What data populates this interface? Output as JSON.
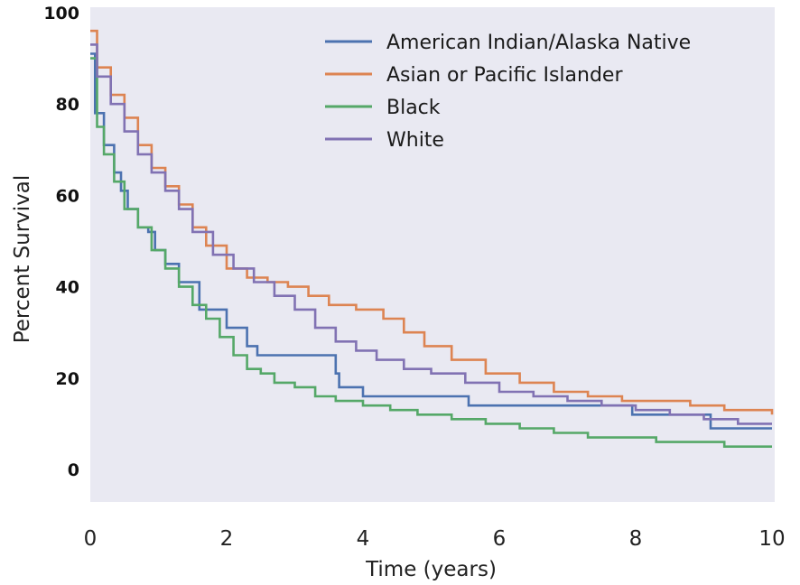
{
  "chart_data": {
    "type": "line",
    "title": "",
    "xlabel": "Time (years)",
    "ylabel": "Percent Survival",
    "xlim": [
      0,
      10
    ],
    "ylim": [
      0,
      100
    ],
    "xticks": [
      "0",
      "2",
      "4",
      "6",
      "8",
      "10"
    ],
    "yticks": [
      "0",
      "20",
      "40",
      "60",
      "80",
      "100"
    ],
    "grid": false,
    "legend_position": "top-right",
    "background": "#e9e9f2",
    "series": [
      {
        "name": "American Indian/Alaska Native",
        "color": "#4c72b0",
        "step": true,
        "points": [
          [
            0,
            91
          ],
          [
            0.07,
            78
          ],
          [
            0.2,
            71
          ],
          [
            0.35,
            65
          ],
          [
            0.45,
            61
          ],
          [
            0.55,
            57
          ],
          [
            0.7,
            53
          ],
          [
            0.85,
            52
          ],
          [
            0.95,
            48
          ],
          [
            1.1,
            45
          ],
          [
            1.3,
            41
          ],
          [
            1.6,
            35
          ],
          [
            2.0,
            31
          ],
          [
            2.3,
            27
          ],
          [
            2.45,
            25
          ],
          [
            3.6,
            21
          ],
          [
            3.65,
            18
          ],
          [
            3.9,
            18
          ],
          [
            4.0,
            16
          ],
          [
            5.45,
            16
          ],
          [
            5.55,
            14
          ],
          [
            7.9,
            14
          ],
          [
            7.95,
            12
          ],
          [
            9.05,
            12
          ],
          [
            9.1,
            9
          ],
          [
            10,
            9
          ]
        ]
      },
      {
        "name": "Asian or Pacific Islander",
        "color": "#dd8452",
        "step": true,
        "points": [
          [
            0,
            96
          ],
          [
            0.1,
            88
          ],
          [
            0.3,
            82
          ],
          [
            0.5,
            77
          ],
          [
            0.7,
            71
          ],
          [
            0.9,
            66
          ],
          [
            1.1,
            62
          ],
          [
            1.3,
            58
          ],
          [
            1.5,
            53
          ],
          [
            1.7,
            49
          ],
          [
            2.0,
            44
          ],
          [
            2.3,
            42
          ],
          [
            2.6,
            41
          ],
          [
            2.9,
            40
          ],
          [
            3.2,
            38
          ],
          [
            3.5,
            36
          ],
          [
            3.9,
            35
          ],
          [
            4.3,
            33
          ],
          [
            4.6,
            30
          ],
          [
            4.9,
            27
          ],
          [
            5.3,
            24
          ],
          [
            5.8,
            21
          ],
          [
            6.3,
            19
          ],
          [
            6.8,
            17
          ],
          [
            7.3,
            16
          ],
          [
            7.8,
            15
          ],
          [
            8.3,
            15
          ],
          [
            8.8,
            14
          ],
          [
            9.3,
            13
          ],
          [
            10,
            12
          ]
        ]
      },
      {
        "name": "Black",
        "color": "#55a868",
        "step": true,
        "points": [
          [
            0,
            90
          ],
          [
            0.1,
            75
          ],
          [
            0.2,
            69
          ],
          [
            0.35,
            63
          ],
          [
            0.5,
            57
          ],
          [
            0.7,
            53
          ],
          [
            0.9,
            48
          ],
          [
            1.1,
            44
          ],
          [
            1.3,
            40
          ],
          [
            1.5,
            36
          ],
          [
            1.7,
            33
          ],
          [
            1.9,
            29
          ],
          [
            2.1,
            25
          ],
          [
            2.3,
            22
          ],
          [
            2.5,
            21
          ],
          [
            2.7,
            19
          ],
          [
            3.0,
            18
          ],
          [
            3.3,
            16
          ],
          [
            3.6,
            15
          ],
          [
            4.0,
            14
          ],
          [
            4.4,
            13
          ],
          [
            4.8,
            12
          ],
          [
            5.3,
            11
          ],
          [
            5.8,
            10
          ],
          [
            6.3,
            9
          ],
          [
            6.8,
            8
          ],
          [
            7.3,
            7
          ],
          [
            7.8,
            7
          ],
          [
            8.3,
            6
          ],
          [
            8.8,
            6
          ],
          [
            9.3,
            5
          ],
          [
            10,
            5
          ]
        ]
      },
      {
        "name": "White",
        "color": "#8172b3",
        "step": true,
        "points": [
          [
            0,
            93
          ],
          [
            0.1,
            86
          ],
          [
            0.3,
            80
          ],
          [
            0.5,
            74
          ],
          [
            0.7,
            69
          ],
          [
            0.9,
            65
          ],
          [
            1.1,
            61
          ],
          [
            1.3,
            57
          ],
          [
            1.5,
            52
          ],
          [
            1.8,
            47
          ],
          [
            2.1,
            44
          ],
          [
            2.4,
            41
          ],
          [
            2.7,
            38
          ],
          [
            3.0,
            35
          ],
          [
            3.3,
            31
          ],
          [
            3.6,
            28
          ],
          [
            3.9,
            26
          ],
          [
            4.2,
            24
          ],
          [
            4.6,
            22
          ],
          [
            5.0,
            21
          ],
          [
            5.5,
            19
          ],
          [
            6.0,
            17
          ],
          [
            6.5,
            16
          ],
          [
            7.0,
            15
          ],
          [
            7.5,
            14
          ],
          [
            8.0,
            13
          ],
          [
            8.5,
            12
          ],
          [
            9.0,
            11
          ],
          [
            9.5,
            10
          ],
          [
            10,
            10
          ]
        ]
      }
    ]
  }
}
